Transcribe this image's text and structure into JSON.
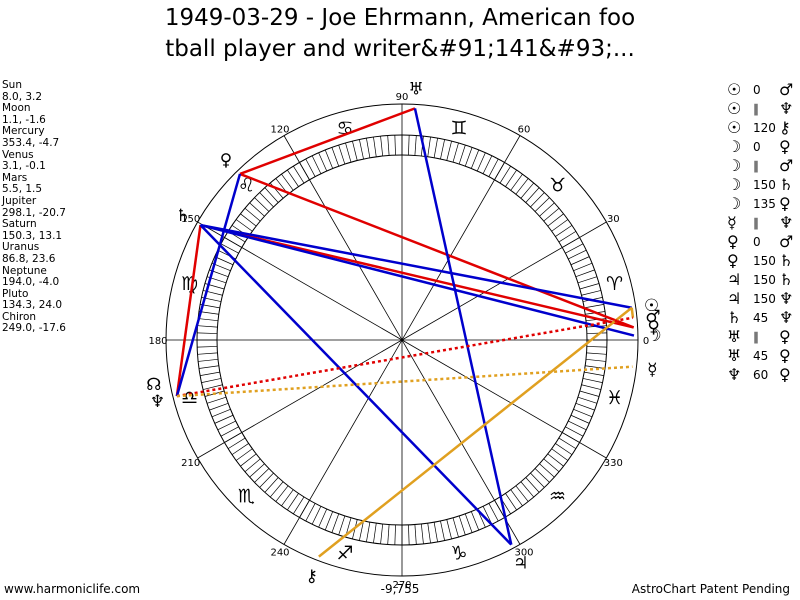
{
  "title_line1": "1949-03-29 - Joe Ehrmann, American foo",
  "title_line2": "tball player and writer&#91;141&#93;...",
  "planet_positions": [
    {
      "name": "Sun",
      "coords": "8.0, 3.2"
    },
    {
      "name": "Moon",
      "coords": "1.1, -1.6"
    },
    {
      "name": "Mercury",
      "coords": "353.4, -4.7"
    },
    {
      "name": "Venus",
      "coords": "3.1, -0.1"
    },
    {
      "name": "Mars",
      "coords": "5.5, 1.5"
    },
    {
      "name": "Jupiter",
      "coords": "298.1, -20.7"
    },
    {
      "name": "Saturn",
      "coords": "150.3, 13.1"
    },
    {
      "name": "Uranus",
      "coords": "86.8, 23.6"
    },
    {
      "name": "Neptune",
      "coords": "194.0, -4.0"
    },
    {
      "name": "Pluto",
      "coords": "134.3, 24.0"
    },
    {
      "name": "Chiron",
      "coords": "249.0, -17.6"
    }
  ],
  "aspects": [
    {
      "p1": "☉",
      "aspect": "0",
      "p2": "♂"
    },
    {
      "p1": "☉",
      "aspect": "∥",
      "p2": "♆"
    },
    {
      "p1": "☉",
      "aspect": "120",
      "p2": "⚷"
    },
    {
      "p1": "☽",
      "aspect": "0",
      "p2": "♀"
    },
    {
      "p1": "☽",
      "aspect": "∥",
      "p2": "♂"
    },
    {
      "p1": "☽",
      "aspect": "150",
      "p2": "♄"
    },
    {
      "p1": "☽",
      "aspect": "135",
      "p2": "♀"
    },
    {
      "p1": "☿",
      "aspect": "∥",
      "p2": "♆"
    },
    {
      "p1": "♀",
      "aspect": "0",
      "p2": "♂"
    },
    {
      "p1": "♀",
      "aspect": "150",
      "p2": "♄"
    },
    {
      "p1": "♃",
      "aspect": "150",
      "p2": "♄"
    },
    {
      "p1": "♃",
      "aspect": "150",
      "p2": "♆"
    },
    {
      "p1": "♄",
      "aspect": "45",
      "p2": "♆"
    },
    {
      "p1": "♅",
      "aspect": "∥",
      "p2": "♀"
    },
    {
      "p1": "♅",
      "aspect": "45",
      "p2": "♀"
    },
    {
      "p1": "♆",
      "aspect": "60",
      "p2": "♀"
    }
  ],
  "wheel": {
    "degree_labels": [
      "0",
      "30",
      "60",
      "90",
      "120",
      "150",
      "180",
      "210",
      "240",
      "270",
      "300",
      "330"
    ],
    "zodiac_signs": [
      "♈",
      "♉",
      "♊",
      "♋",
      "♌",
      "♍",
      "♎",
      "♏",
      "♐",
      "♑",
      "♒",
      "♓"
    ],
    "planets": [
      {
        "name": "Sun",
        "glyph": "☉",
        "lon": 8.0
      },
      {
        "name": "Moon",
        "glyph": "☽",
        "lon": 1.1
      },
      {
        "name": "Mercury",
        "glyph": "☿",
        "lon": 353.4
      },
      {
        "name": "Venus",
        "glyph": "♀",
        "lon": 3.1
      },
      {
        "name": "Mars",
        "glyph": "♂",
        "lon": 5.5
      },
      {
        "name": "Jupiter",
        "glyph": "♃",
        "lon": 298.1
      },
      {
        "name": "Saturn",
        "glyph": "♄",
        "lon": 150.3
      },
      {
        "name": "Uranus",
        "glyph": "♅",
        "lon": 86.8
      },
      {
        "name": "Neptune",
        "glyph": "♆",
        "lon": 194.0
      },
      {
        "name": "Pluto",
        "glyph": "♀",
        "lon": 134.3
      },
      {
        "name": "Chiron",
        "glyph": "⚷",
        "lon": 249.0
      },
      {
        "name": "Node",
        "glyph": "☊",
        "lon": 190.0
      }
    ],
    "aspect_lines": [
      {
        "from": 86.8,
        "to": 134.3,
        "color": "#e00000",
        "style": "solid"
      },
      {
        "from": 134.3,
        "to": 3.1,
        "color": "#e00000",
        "style": "solid"
      },
      {
        "from": 150.3,
        "to": 3.1,
        "color": "#e00000",
        "style": "solid"
      },
      {
        "from": 150.3,
        "to": 194.0,
        "color": "#e00000",
        "style": "solid"
      },
      {
        "from": 86.8,
        "to": 298.1,
        "color": "#0000cc",
        "style": "solid"
      },
      {
        "from": 150.3,
        "to": 298.1,
        "color": "#0000cc",
        "style": "solid"
      },
      {
        "from": 150.3,
        "to": 1.1,
        "color": "#0000cc",
        "style": "solid"
      },
      {
        "from": 150.3,
        "to": 8.0,
        "color": "#0000cc",
        "style": "solid"
      },
      {
        "from": 194.0,
        "to": 134.3,
        "color": "#0000cc",
        "style": "solid"
      },
      {
        "from": 249.0,
        "to": 8.0,
        "color": "#e0a020",
        "style": "solid"
      },
      {
        "from": 8.0,
        "to": 5.5,
        "color": "#e0a020",
        "style": "solid"
      },
      {
        "from": 194.0,
        "to": 5.5,
        "color": "#e00000",
        "style": "dotted"
      },
      {
        "from": 194.0,
        "to": 353.4,
        "color": "#e0a020",
        "style": "dotted"
      }
    ]
  },
  "footer": {
    "left": "www.harmoniclife.com",
    "center": "-9,755",
    "right": "AstroChart Patent Pending"
  }
}
